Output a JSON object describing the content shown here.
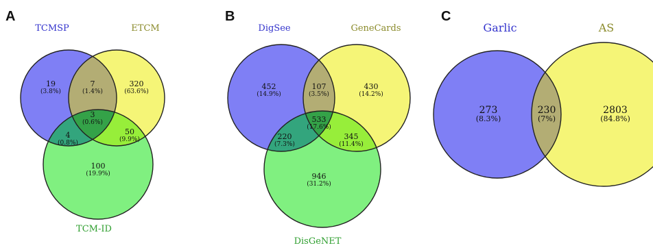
{
  "panels": {
    "A": {
      "letter": "A",
      "sets": {
        "s1": {
          "name": "TCMSP",
          "color": "#3333cc",
          "fill": "#7f7ff5"
        },
        "s2": {
          "name": "ETCM",
          "color": "#8a8a2a",
          "fill": "#f5f577"
        },
        "s3": {
          "name": "TCM-ID",
          "color": "#2e9e2e",
          "fill": "#80f080"
        }
      },
      "regions": {
        "only1": {
          "count": "19",
          "pct": "(3.8%)"
        },
        "r12": {
          "count": "7",
          "pct": "(1.4%)"
        },
        "only2": {
          "count": "320",
          "pct": "(63.6%)"
        },
        "r123": {
          "count": "3",
          "pct": "(0.6%)"
        },
        "r13": {
          "count": "4",
          "pct": "(0.8%)"
        },
        "r23": {
          "count": "50",
          "pct": "(9.9%)"
        },
        "only3": {
          "count": "100",
          "pct": "(19.9%)"
        }
      }
    },
    "B": {
      "letter": "B",
      "sets": {
        "s1": {
          "name": "DigSee",
          "color": "#3333cc",
          "fill": "#7f7ff5"
        },
        "s2": {
          "name": "GeneCards",
          "color": "#8a8a2a",
          "fill": "#f5f577"
        },
        "s3": {
          "name": "DisGeNET",
          "color": "#2e9e2e",
          "fill": "#80f080"
        }
      },
      "regions": {
        "only1": {
          "count": "452",
          "pct": "(14.9%)"
        },
        "r12": {
          "count": "107",
          "pct": "(3.5%)"
        },
        "only2": {
          "count": "430",
          "pct": "(14.2%)"
        },
        "r123": {
          "count": "533",
          "pct": "(17.6%)"
        },
        "r13": {
          "count": "220",
          "pct": "(7.3%)"
        },
        "r23": {
          "count": "345",
          "pct": "(11.4%)"
        },
        "only3": {
          "count": "946",
          "pct": "(31.2%)"
        }
      }
    },
    "C": {
      "letter": "C",
      "sets": {
        "s1": {
          "name": "Garlic",
          "color": "#3333cc",
          "fill": "#7f7ff5"
        },
        "s2": {
          "name": "AS",
          "color": "#8a8a2a",
          "fill": "#f5f577"
        }
      },
      "regions": {
        "only1": {
          "count": "273",
          "pct": "(8.3%)"
        },
        "r12": {
          "count": "230",
          "pct": "(7%)"
        },
        "only2": {
          "count": "2803",
          "pct": "(84.8%)"
        }
      }
    }
  },
  "colors": {
    "overlap12": "#b3ad74",
    "overlap13": "#33a57d",
    "overlap23": "#97ee3a",
    "overlap123": "#34a248"
  }
}
